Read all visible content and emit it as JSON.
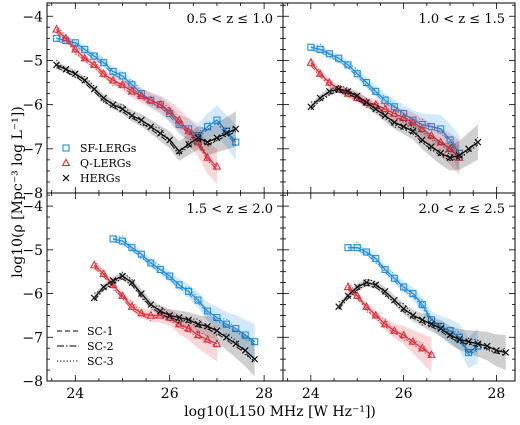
{
  "figure": {
    "ylabel": "log10(ρ [Mpc⁻³ log L⁻¹])",
    "xlabel": "log10(L150 MHz [W Hz⁻¹])"
  },
  "colors": {
    "SF-LERGs": "#1f8fe0",
    "Q-LERGs": "#e0303a",
    "HERGs": "#111111"
  },
  "legend_markers": {
    "series": [
      "SF-LERGs",
      "Q-LERGs",
      "HERGs"
    ],
    "lines": [
      "SC-1",
      "SC-2",
      "SC-3"
    ]
  },
  "chart_data": [
    {
      "type": "line",
      "title": "0.5 < z ≤ 1.0",
      "xlim": [
        23.4,
        28.4
      ],
      "ylim": [
        -8,
        -3.7
      ],
      "xticks": [
        24,
        26,
        28
      ],
      "yticks": [
        -8,
        -7,
        -6,
        -5,
        -4
      ],
      "series": [
        {
          "name": "SF-LERGs",
          "x": [
            23.6,
            23.8,
            24.0,
            24.2,
            24.4,
            24.6,
            24.8,
            25.0,
            25.2,
            25.4,
            25.6,
            25.8,
            26.0,
            26.2,
            26.4,
            26.6,
            26.8,
            27.0,
            27.2,
            27.4
          ],
          "y": [
            -4.5,
            -4.55,
            -4.6,
            -4.75,
            -4.9,
            -5.05,
            -5.25,
            -5.35,
            -5.55,
            -5.75,
            -5.9,
            -6.0,
            -6.2,
            -6.45,
            -6.55,
            -6.7,
            -6.5,
            -6.35,
            -6.6,
            -6.85
          ]
        },
        {
          "name": "Q-LERGs",
          "x": [
            23.6,
            23.8,
            24.0,
            24.2,
            24.4,
            24.6,
            24.8,
            25.0,
            25.2,
            25.4,
            25.6,
            25.8,
            26.0,
            26.2,
            26.4,
            26.6,
            26.8,
            27.0
          ],
          "y": [
            -4.3,
            -4.5,
            -4.75,
            -4.95,
            -5.1,
            -5.3,
            -5.45,
            -5.55,
            -5.7,
            -5.8,
            -5.9,
            -6.0,
            -6.15,
            -6.35,
            -6.6,
            -6.85,
            -7.2,
            -7.4
          ]
        },
        {
          "name": "HERGs",
          "x": [
            23.6,
            23.8,
            24.0,
            24.2,
            24.4,
            24.6,
            24.8,
            25.0,
            25.2,
            25.4,
            25.6,
            25.8,
            26.0,
            26.2,
            26.4,
            26.6,
            26.8,
            27.0,
            27.2,
            27.4
          ],
          "y": [
            -5.1,
            -5.2,
            -5.3,
            -5.45,
            -5.65,
            -5.85,
            -6.0,
            -6.1,
            -6.25,
            -6.35,
            -6.5,
            -6.65,
            -6.8,
            -7.05,
            -6.9,
            -6.75,
            -6.85,
            -6.75,
            -6.65,
            -6.55
          ]
        }
      ]
    },
    {
      "type": "line",
      "title": "1.0 < z ≤ 1.5",
      "xlim": [
        23.4,
        28.4
      ],
      "ylim": [
        -8,
        -3.7
      ],
      "xticks": [
        24,
        26,
        28
      ],
      "yticks": [
        -8,
        -7,
        -6,
        -5,
        -4
      ],
      "series": [
        {
          "name": "SF-LERGs",
          "x": [
            24.0,
            24.2,
            24.4,
            24.6,
            24.8,
            25.0,
            25.2,
            25.4,
            25.6,
            25.8,
            26.0,
            26.2,
            26.4,
            26.6,
            26.8,
            27.0,
            27.2
          ],
          "y": [
            -4.7,
            -4.75,
            -4.85,
            -4.95,
            -5.1,
            -5.3,
            -5.5,
            -5.7,
            -5.9,
            -6.05,
            -6.2,
            -6.35,
            -6.45,
            -6.5,
            -6.55,
            -6.8,
            -7.1
          ]
        },
        {
          "name": "Q-LERGs",
          "x": [
            24.0,
            24.2,
            24.4,
            24.6,
            24.8,
            25.0,
            25.2,
            25.4,
            25.6,
            25.8,
            26.0,
            26.2,
            26.4,
            26.6,
            26.8,
            27.0,
            27.2
          ],
          "y": [
            -5.05,
            -5.3,
            -5.5,
            -5.65,
            -5.75,
            -5.85,
            -5.95,
            -6.0,
            -6.1,
            -6.2,
            -6.3,
            -6.4,
            -6.55,
            -6.7,
            -6.85,
            -7.0,
            -7.2
          ]
        },
        {
          "name": "HERGs",
          "x": [
            24.0,
            24.2,
            24.4,
            24.6,
            24.8,
            25.0,
            25.2,
            25.4,
            25.6,
            25.8,
            26.0,
            26.2,
            26.4,
            26.6,
            26.8,
            27.0,
            27.2,
            27.4,
            27.6
          ],
          "y": [
            -6.05,
            -5.85,
            -5.7,
            -5.65,
            -5.7,
            -5.8,
            -5.95,
            -6.1,
            -6.25,
            -6.4,
            -6.5,
            -6.6,
            -6.8,
            -6.95,
            -7.1,
            -7.2,
            -7.15,
            -7.0,
            -6.85
          ]
        }
      ]
    },
    {
      "type": "line",
      "title": "1.5 < z ≤ 2.0",
      "xlim": [
        23.4,
        28.4
      ],
      "ylim": [
        -8,
        -3.7
      ],
      "xticks": [
        24,
        26,
        28
      ],
      "yticks": [
        -8,
        -7,
        -6,
        -5,
        -4
      ],
      "series": [
        {
          "name": "SF-LERGs",
          "x": [
            24.8,
            25.0,
            25.2,
            25.4,
            25.6,
            25.8,
            26.0,
            26.2,
            26.4,
            26.6,
            26.8,
            27.0,
            27.2,
            27.4,
            27.6,
            27.8
          ],
          "y": [
            -4.75,
            -4.8,
            -4.95,
            -5.1,
            -5.3,
            -5.45,
            -5.6,
            -5.8,
            -5.95,
            -6.15,
            -6.4,
            -6.55,
            -6.7,
            -6.8,
            -6.95,
            -7.1
          ]
        },
        {
          "name": "Q-LERGs",
          "x": [
            24.4,
            24.6,
            24.8,
            25.0,
            25.2,
            25.4,
            25.6,
            25.8,
            26.0,
            26.2,
            26.4,
            26.6,
            26.8,
            27.0
          ],
          "y": [
            -5.35,
            -5.55,
            -5.8,
            -6.05,
            -6.3,
            -6.45,
            -6.5,
            -6.5,
            -6.55,
            -6.7,
            -6.8,
            -6.95,
            -7.05,
            -7.15
          ]
        },
        {
          "name": "HERGs",
          "x": [
            24.4,
            24.6,
            24.8,
            25.0,
            25.2,
            25.4,
            25.6,
            25.8,
            26.0,
            26.2,
            26.4,
            26.6,
            26.8,
            27.0,
            27.2,
            27.4,
            27.6,
            27.8
          ],
          "y": [
            -6.1,
            -5.85,
            -5.7,
            -5.6,
            -5.75,
            -6.0,
            -6.25,
            -6.4,
            -6.5,
            -6.55,
            -6.6,
            -6.7,
            -6.75,
            -6.85,
            -7.0,
            -7.15,
            -7.3,
            -7.5
          ]
        }
      ]
    },
    {
      "type": "line",
      "title": "2.0 < z ≤ 2.5",
      "xlim": [
        23.4,
        28.4
      ],
      "ylim": [
        -8,
        -3.7
      ],
      "xticks": [
        24,
        26,
        28
      ],
      "yticks": [
        -8,
        -7,
        -6,
        -5,
        -4
      ],
      "series": [
        {
          "name": "SF-LERGs",
          "x": [
            24.8,
            25.0,
            25.2,
            25.4,
            25.6,
            25.8,
            26.0,
            26.2,
            26.4,
            26.6,
            26.8,
            27.0,
            27.2,
            27.4,
            27.6
          ],
          "y": [
            -4.95,
            -4.95,
            -5.05,
            -5.2,
            -5.45,
            -5.65,
            -5.85,
            -6.0,
            -6.25,
            -6.6,
            -6.75,
            -6.85,
            -7.0,
            -7.35,
            -7.2
          ]
        },
        {
          "name": "Q-LERGs",
          "x": [
            24.8,
            25.0,
            25.2,
            25.4,
            25.6,
            25.8,
            26.0,
            26.2,
            26.4,
            26.6
          ],
          "y": [
            -5.85,
            -6.05,
            -6.3,
            -6.5,
            -6.7,
            -6.85,
            -6.95,
            -7.1,
            -7.25,
            -7.4
          ]
        },
        {
          "name": "HERGs",
          "x": [
            24.6,
            24.8,
            25.0,
            25.2,
            25.4,
            25.6,
            25.8,
            26.0,
            26.2,
            26.4,
            26.6,
            26.8,
            27.0,
            27.2,
            27.4,
            27.6,
            27.8,
            28.0,
            28.2
          ],
          "y": [
            -6.3,
            -6.05,
            -5.85,
            -5.75,
            -5.8,
            -5.95,
            -6.15,
            -6.35,
            -6.5,
            -6.6,
            -6.7,
            -6.8,
            -6.95,
            -7.05,
            -7.1,
            -7.15,
            -7.2,
            -7.3,
            -7.35
          ]
        }
      ]
    }
  ]
}
